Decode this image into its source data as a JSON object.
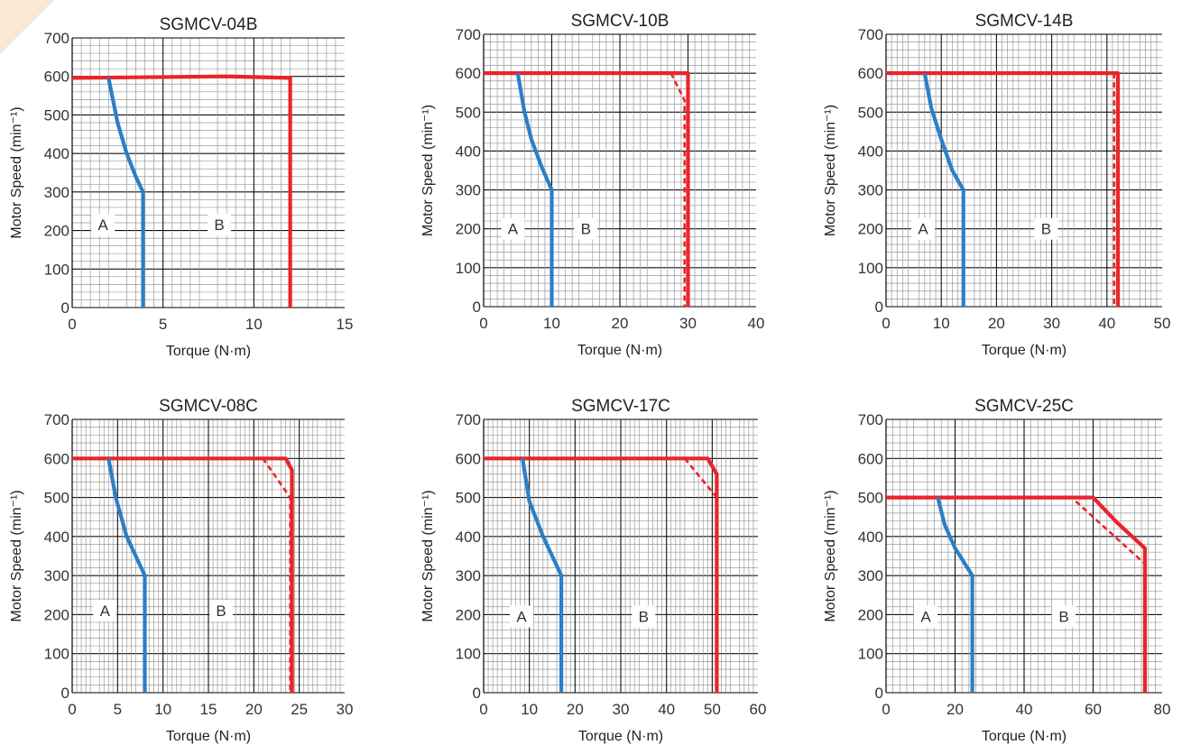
{
  "colors": {
    "intermittent": "#e8252b",
    "continuous": "#2b7fc6",
    "grid_minor": "#9a9a9a",
    "grid_major": "#111111",
    "corner_tab": "#fbe8d2"
  },
  "chart_data": [
    {
      "type": "line",
      "title": "SGMCV-04B",
      "xlabel": "Torque (N·m)",
      "ylabel": "Motor Speed (min⁻¹)",
      "xlim": [
        0,
        15
      ],
      "ylim": [
        0,
        700
      ],
      "xticks": [
        0,
        5,
        10,
        15
      ],
      "yticks": [
        0,
        100,
        200,
        300,
        400,
        500,
        600,
        700
      ],
      "grid": true,
      "regions": [
        {
          "label": "A",
          "x": 1.7,
          "y": 215
        },
        {
          "label": "B",
          "x": 8.1,
          "y": 215
        }
      ],
      "series": [
        {
          "style": "solid",
          "color_key": "intermittent",
          "points": [
            [
              0,
              596
            ],
            [
              8.5,
              600
            ],
            [
              12,
              596
            ],
            [
              12,
              0
            ]
          ]
        },
        {
          "style": "solid",
          "color_key": "continuous",
          "points": [
            [
              2,
              596
            ],
            [
              2.5,
              480
            ],
            [
              3,
              400
            ],
            [
              3.5,
              340
            ],
            [
              3.9,
              300
            ],
            [
              3.9,
              0
            ]
          ]
        }
      ]
    },
    {
      "type": "line",
      "title": "SGMCV-10B",
      "xlabel": "Torque (N·m)",
      "ylabel": "Motor Speed (min⁻¹)",
      "xlim": [
        0,
        40
      ],
      "ylim": [
        0,
        700
      ],
      "xticks": [
        0,
        10,
        20,
        30,
        40
      ],
      "yticks": [
        0,
        100,
        200,
        300,
        400,
        500,
        600,
        700
      ],
      "grid": true,
      "regions": [
        {
          "label": "A",
          "x": 4.3,
          "y": 200
        },
        {
          "label": "B",
          "x": 15,
          "y": 200
        }
      ],
      "series": [
        {
          "style": "solid",
          "color_key": "intermittent",
          "points": [
            [
              0,
              600
            ],
            [
              30,
              600
            ],
            [
              30,
              0
            ]
          ]
        },
        {
          "style": "dashed",
          "color_key": "intermittent",
          "points": [
            [
              27.5,
              600
            ],
            [
              29.5,
              530
            ],
            [
              29.5,
              0
            ]
          ]
        },
        {
          "style": "solid",
          "color_key": "continuous",
          "points": [
            [
              5,
              600
            ],
            [
              6,
              500
            ],
            [
              7,
              430
            ],
            [
              8.5,
              360
            ],
            [
              10,
              300
            ],
            [
              10,
              0
            ]
          ]
        }
      ]
    },
    {
      "type": "line",
      "title": "SGMCV-14B",
      "xlabel": "Torque (N·m)",
      "ylabel": "Motor Speed (min⁻¹)",
      "xlim": [
        0,
        50
      ],
      "ylim": [
        0,
        700
      ],
      "xticks": [
        0,
        10,
        20,
        30,
        40,
        50
      ],
      "yticks": [
        0,
        100,
        200,
        300,
        400,
        500,
        600,
        700
      ],
      "grid": true,
      "regions": [
        {
          "label": "A",
          "x": 6.7,
          "y": 200
        },
        {
          "label": "B",
          "x": 29,
          "y": 200
        }
      ],
      "series": [
        {
          "style": "solid",
          "color_key": "intermittent",
          "points": [
            [
              0,
              600
            ],
            [
              42,
              600
            ],
            [
              42,
              0
            ]
          ]
        },
        {
          "style": "dashed",
          "color_key": "intermittent",
          "points": [
            [
              41.3,
              600
            ],
            [
              41.3,
              0
            ]
          ]
        },
        {
          "style": "solid",
          "color_key": "continuous",
          "points": [
            [
              7,
              600
            ],
            [
              8.2,
              510
            ],
            [
              10,
              430
            ],
            [
              12,
              350
            ],
            [
              14,
              300
            ],
            [
              14,
              0
            ]
          ]
        }
      ]
    },
    {
      "type": "line",
      "title": "SGMCV-08C",
      "xlabel": "Torque (N·m)",
      "ylabel": "Motor Speed (min⁻¹)",
      "xlim": [
        0,
        30
      ],
      "ylim": [
        0,
        700
      ],
      "xticks": [
        0,
        5,
        10,
        15,
        20,
        25,
        30
      ],
      "yticks": [
        0,
        100,
        200,
        300,
        400,
        500,
        600,
        700
      ],
      "grid": true,
      "regions": [
        {
          "label": "A",
          "x": 3.6,
          "y": 210
        },
        {
          "label": "B",
          "x": 16.4,
          "y": 210
        }
      ],
      "series": [
        {
          "style": "solid",
          "color_key": "intermittent",
          "points": [
            [
              0,
              600
            ],
            [
              23.5,
              600
            ],
            [
              24.2,
              570
            ],
            [
              24.2,
              0
            ]
          ]
        },
        {
          "style": "dashed",
          "color_key": "intermittent",
          "points": [
            [
              21,
              600
            ],
            [
              24,
              500
            ],
            [
              24,
              0
            ]
          ]
        },
        {
          "style": "solid",
          "color_key": "continuous",
          "points": [
            [
              4,
              600
            ],
            [
              4.8,
              500
            ],
            [
              6,
              400
            ],
            [
              8,
              300
            ],
            [
              8,
              0
            ]
          ]
        }
      ]
    },
    {
      "type": "line",
      "title": "SGMCV-17C",
      "xlabel": "Torque (N·m)",
      "ylabel": "Motor Speed (min⁻¹)",
      "xlim": [
        0,
        60
      ],
      "ylim": [
        0,
        700
      ],
      "xticks": [
        0,
        10,
        20,
        30,
        40,
        50,
        60
      ],
      "yticks": [
        0,
        100,
        200,
        300,
        400,
        500,
        600,
        700
      ],
      "grid": true,
      "regions": [
        {
          "label": "A",
          "x": 8.3,
          "y": 195
        },
        {
          "label": "B",
          "x": 35,
          "y": 195
        }
      ],
      "series": [
        {
          "style": "solid",
          "color_key": "intermittent",
          "points": [
            [
              0,
              600
            ],
            [
              49,
              600
            ],
            [
              51,
              560
            ],
            [
              51,
              0
            ]
          ]
        },
        {
          "style": "dashed",
          "color_key": "intermittent",
          "points": [
            [
              44,
              600
            ],
            [
              51,
              500
            ],
            [
              51,
              0
            ]
          ]
        },
        {
          "style": "solid",
          "color_key": "continuous",
          "points": [
            [
              8.5,
              600
            ],
            [
              10,
              490
            ],
            [
              13,
              400
            ],
            [
              17,
              300
            ],
            [
              17,
              0
            ]
          ]
        }
      ]
    },
    {
      "type": "line",
      "title": "SGMCV-25C",
      "xlabel": "Torque (N·m)",
      "ylabel": "Motor Speed (min⁻¹)",
      "xlim": [
        0,
        80
      ],
      "ylim": [
        0,
        700
      ],
      "xticks": [
        0,
        20,
        40,
        60,
        80
      ],
      "yticks": [
        0,
        100,
        200,
        300,
        400,
        500,
        600,
        700
      ],
      "grid": true,
      "regions": [
        {
          "label": "A",
          "x": 11.5,
          "y": 195
        },
        {
          "label": "B",
          "x": 51.5,
          "y": 195
        }
      ],
      "series": [
        {
          "style": "solid",
          "color_key": "intermittent",
          "points": [
            [
              0,
              500
            ],
            [
              60,
              500
            ],
            [
              67,
              435
            ],
            [
              75,
              370
            ],
            [
              75,
              0
            ]
          ]
        },
        {
          "style": "dashed",
          "color_key": "intermittent",
          "points": [
            [
              55,
              490
            ],
            [
              75,
              330
            ],
            [
              75,
              0
            ]
          ]
        },
        {
          "style": "solid",
          "color_key": "continuous",
          "points": [
            [
              15,
              500
            ],
            [
              17,
              430
            ],
            [
              20,
              370
            ],
            [
              25,
              300
            ],
            [
              25,
              0
            ]
          ]
        }
      ]
    }
  ]
}
